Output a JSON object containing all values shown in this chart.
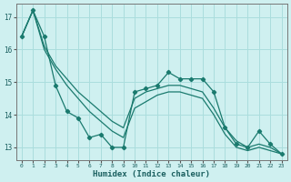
{
  "xlabel": "Humidex (Indice chaleur)",
  "background_color": "#cff0f0",
  "grid_color": "#aadddd",
  "line_color": "#1a7a6e",
  "x_data": [
    0,
    1,
    2,
    3,
    4,
    5,
    6,
    7,
    8,
    9,
    10,
    11,
    12,
    13,
    14,
    15,
    16,
    17,
    18,
    19,
    20,
    21,
    22,
    23
  ],
  "y_main": [
    16.4,
    17.2,
    16.4,
    14.9,
    14.1,
    13.9,
    13.3,
    13.4,
    13.0,
    13.0,
    14.7,
    14.8,
    14.9,
    15.3,
    15.1,
    15.1,
    15.1,
    14.7,
    13.6,
    13.1,
    13.0,
    13.5,
    13.1,
    12.8
  ],
  "y_smooth1": [
    16.4,
    17.2,
    16.1,
    15.5,
    15.1,
    14.7,
    14.4,
    14.1,
    13.8,
    13.6,
    14.5,
    14.7,
    14.8,
    14.9,
    14.9,
    14.8,
    14.7,
    14.2,
    13.6,
    13.2,
    13.0,
    13.1,
    13.0,
    12.8
  ],
  "y_smooth2": [
    16.4,
    17.2,
    16.0,
    15.4,
    14.9,
    14.5,
    14.1,
    13.8,
    13.5,
    13.3,
    14.2,
    14.4,
    14.6,
    14.7,
    14.7,
    14.6,
    14.5,
    14.0,
    13.4,
    13.0,
    12.9,
    13.0,
    12.9,
    12.8
  ],
  "ylim": [
    12.6,
    17.4
  ],
  "xlim": [
    -0.5,
    23.5
  ],
  "yticks": [
    13,
    14,
    15,
    16,
    17
  ],
  "xticks": [
    0,
    1,
    2,
    3,
    4,
    5,
    6,
    7,
    8,
    9,
    10,
    11,
    12,
    13,
    14,
    15,
    16,
    17,
    18,
    19,
    20,
    21,
    22,
    23
  ]
}
